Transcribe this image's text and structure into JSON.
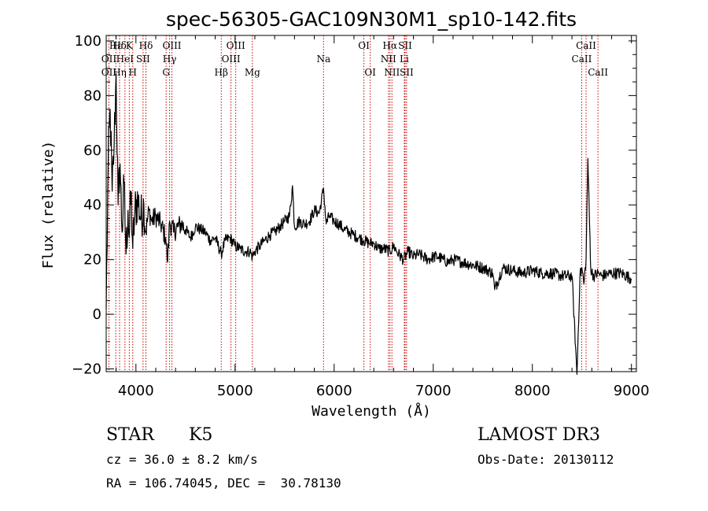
{
  "chart_data": {
    "type": "line",
    "title": "spec-56305-GAC109N30M1_sp10-142.fits",
    "xlabel": "Wavelength (Å)",
    "ylabel": "Flux (relative)",
    "xlim": [
      3700,
      9050
    ],
    "ylim": [
      -21,
      102
    ],
    "xticks": [
      4000,
      5000,
      6000,
      7000,
      8000,
      9000
    ],
    "xtick_labels": [
      "4000",
      "5000",
      "6000",
      "7000",
      "8000",
      "9000"
    ],
    "yticks": [
      -20,
      0,
      20,
      40,
      60,
      80,
      100
    ],
    "ytick_labels": [
      "−20",
      "0",
      "20",
      "40",
      "60",
      "80",
      "100"
    ],
    "grid": false,
    "legend": "none",
    "line_color": "#000000",
    "marker_color": "#cc0000",
    "series": [
      {
        "name": "flux",
        "x": [
          3700,
          3720,
          3740,
          3760,
          3780,
          3800,
          3820,
          3840,
          3860,
          3880,
          3900,
          3920,
          3933,
          3950,
          3968,
          3990,
          4020,
          4050,
          4080,
          4101,
          4130,
          4160,
          4200,
          4250,
          4300,
          4320,
          4340,
          4380,
          4420,
          4460,
          4500,
          4550,
          4600,
          4650,
          4700,
          4750,
          4800,
          4861,
          4900,
          4950,
          5000,
          5050,
          5100,
          5150,
          5175,
          5200,
          5250,
          5300,
          5350,
          5400,
          5450,
          5500,
          5550,
          5580,
          5600,
          5650,
          5700,
          5750,
          5800,
          5850,
          5893,
          5920,
          5950,
          6000,
          6050,
          6100,
          6150,
          6200,
          6250,
          6300,
          6350,
          6400,
          6450,
          6500,
          6563,
          6600,
          6650,
          6700,
          6750,
          6800,
          6850,
          6900,
          6950,
          7000,
          7050,
          7100,
          7150,
          7200,
          7300,
          7400,
          7500,
          7600,
          7620,
          7700,
          7800,
          7900,
          8000,
          8100,
          8200,
          8300,
          8400,
          8450,
          8480,
          8500,
          8520,
          8542,
          8560,
          8590,
          8620,
          8662,
          8700,
          8800,
          8900,
          9000
        ],
        "y": [
          2,
          55,
          75,
          45,
          62,
          88,
          40,
          55,
          30,
          48,
          22,
          38,
          28,
          45,
          24,
          38,
          42,
          35,
          40,
          30,
          38,
          34,
          36,
          33,
          28,
          19,
          34,
          30,
          32,
          33,
          31,
          28,
          32,
          31,
          30,
          27,
          28,
          22,
          27,
          28,
          25,
          24,
          23,
          23,
          21,
          23,
          25,
          27,
          29,
          30,
          32,
          34,
          36,
          47,
          32,
          34,
          33,
          34,
          38,
          37,
          46,
          33,
          36,
          34,
          33,
          31,
          30,
          29,
          28,
          27,
          26,
          26,
          24,
          24,
          23,
          25,
          22,
          20,
          23,
          21,
          22,
          21,
          20,
          21,
          21,
          20,
          19,
          20,
          19,
          18,
          17,
          15,
          9,
          17,
          16,
          15,
          16,
          15,
          15,
          14,
          14,
          -22,
          14,
          17,
          11,
          20,
          57,
          16,
          14,
          15,
          14,
          15,
          15,
          13
        ]
      }
    ],
    "lines": [
      {
        "label": "Hε",
        "x": 3797,
        "row": 1
      },
      {
        "label": "OII",
        "x": 3727,
        "row": 2
      },
      {
        "label": "OII",
        "x": 3727,
        "row": 3
      },
      {
        "label": "Hδ",
        "x": 3835,
        "row": 1
      },
      {
        "label": "HeI",
        "x": 3889,
        "row": 2
      },
      {
        "label": "Hη",
        "x": 3835,
        "row": 3
      },
      {
        "label": "K",
        "x": 3933,
        "row": 1
      },
      {
        "label": "SII",
        "x": 4072,
        "row": 2
      },
      {
        "label": "H",
        "x": 3968,
        "row": 3
      },
      {
        "label": "Hδ",
        "x": 4101,
        "row": 1
      },
      {
        "label": "OIII",
        "x": 4363,
        "row": 1
      },
      {
        "label": "Hγ",
        "x": 4340,
        "row": 2
      },
      {
        "label": "G",
        "x": 4305,
        "row": 3
      },
      {
        "label": "Hβ",
        "x": 4861,
        "row": 3
      },
      {
        "label": "OIII",
        "x": 5007,
        "row": 1
      },
      {
        "label": "OIII",
        "x": 4959,
        "row": 2
      },
      {
        "label": "Mg",
        "x": 5175,
        "row": 3
      },
      {
        "label": "Na",
        "x": 5893,
        "row": 2
      },
      {
        "label": "OI",
        "x": 6300,
        "row": 1
      },
      {
        "label": "OI",
        "x": 6364,
        "row": 3
      },
      {
        "label": "Hα",
        "x": 6563,
        "row": 1
      },
      {
        "label": "NII",
        "x": 6548,
        "row": 2
      },
      {
        "label": "NII",
        "x": 6583,
        "row": 3
      },
      {
        "label": "SII",
        "x": 6716,
        "row": 1
      },
      {
        "label": "Li",
        "x": 6708,
        "row": 2
      },
      {
        "label": "SII",
        "x": 6731,
        "row": 3
      },
      {
        "label": "CaII",
        "x": 8542,
        "row": 1
      },
      {
        "label": "CaII",
        "x": 8498,
        "row": 2
      },
      {
        "label": "CaII",
        "x": 8662,
        "row": 3
      }
    ]
  },
  "info": {
    "class_label": "STAR",
    "subclass": "K5",
    "survey": "LAMOST DR3",
    "cz": "cz = 36.0 ± 8.2 km/s",
    "obs_date": "Obs-Date: 20130112",
    "coords": "RA = 106.74045, DEC =  30.78130"
  }
}
